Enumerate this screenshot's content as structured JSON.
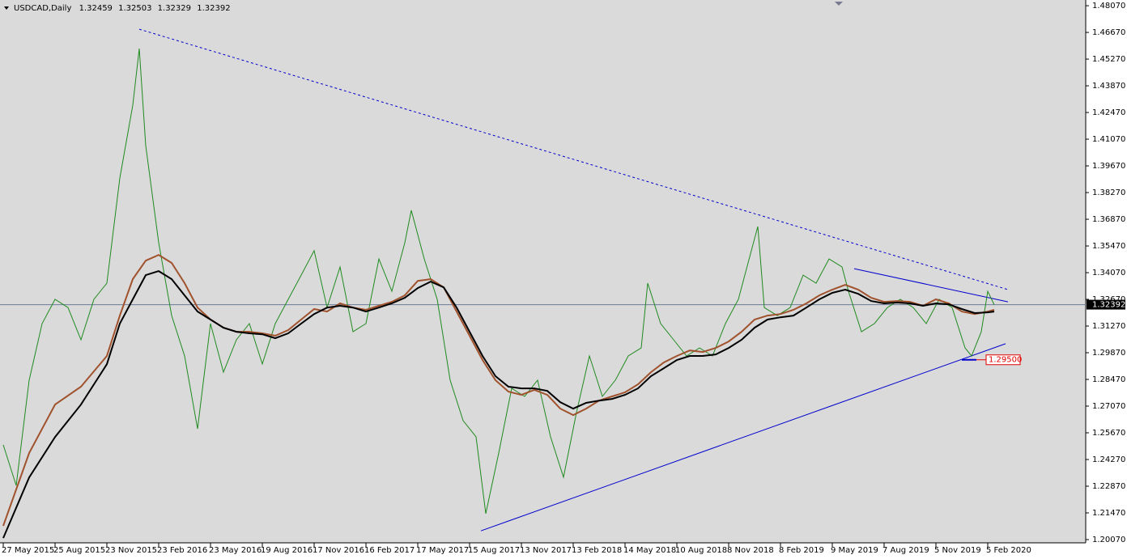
{
  "chart_data": {
    "type": "line",
    "title": "USDCAD,Daily",
    "ohlc": [
      1.32459,
      1.32503,
      1.32329,
      1.32392
    ],
    "current_price": 1.32392,
    "level": {
      "value": 1.295,
      "label": "1.29500"
    },
    "xlim": [
      0,
      1336
    ],
    "ylim": [
      1.199,
      1.4837
    ],
    "xticks": [
      {
        "value": 0,
        "label": "27 May 2015"
      },
      {
        "value": 64,
        "label": "25 Aug 2015"
      },
      {
        "value": 128,
        "label": "23 Nov 2015"
      },
      {
        "value": 192,
        "label": "23 Feb 2016"
      },
      {
        "value": 256,
        "label": "23 May 2016"
      },
      {
        "value": 320,
        "label": "19 Aug 2016"
      },
      {
        "value": 384,
        "label": "17 Nov 2016"
      },
      {
        "value": 448,
        "label": "16 Feb 2017"
      },
      {
        "value": 512,
        "label": "17 May 2017"
      },
      {
        "value": 576,
        "label": "15 Aug 2017"
      },
      {
        "value": 640,
        "label": "13 Nov 2017"
      },
      {
        "value": 704,
        "label": "13 Feb 2018"
      },
      {
        "value": 768,
        "label": "14 May 2018"
      },
      {
        "value": 832,
        "label": "10 Aug 2018"
      },
      {
        "value": 896,
        "label": "8 Nov 2018"
      },
      {
        "value": 960,
        "label": "8 Feb 2019"
      },
      {
        "value": 1024,
        "label": "9 May 2019"
      },
      {
        "value": 1088,
        "label": "7 Aug 2019"
      },
      {
        "value": 1152,
        "label": "5 Nov 2019"
      },
      {
        "value": 1216,
        "label": "5 Feb 2020"
      }
    ],
    "yticks": [
      {
        "value": 1.4807,
        "label": "1.48070"
      },
      {
        "value": 1.4667,
        "label": "1.46670"
      },
      {
        "value": 1.4527,
        "label": "1.45270"
      },
      {
        "value": 1.4387,
        "label": "1.43870"
      },
      {
        "value": 1.4247,
        "label": "1.42470"
      },
      {
        "value": 1.4107,
        "label": "1.41070"
      },
      {
        "value": 1.3967,
        "label": "1.39670"
      },
      {
        "value": 1.3827,
        "label": "1.38270"
      },
      {
        "value": 1.3687,
        "label": "1.36870"
      },
      {
        "value": 1.3547,
        "label": "1.35470"
      },
      {
        "value": 1.3407,
        "label": "1.34070"
      },
      {
        "value": 1.3267,
        "label": "1.32670"
      },
      {
        "value": 1.3127,
        "label": "1.31270"
      },
      {
        "value": 1.2987,
        "label": "1.29870"
      },
      {
        "value": 1.2847,
        "label": "1.28470"
      },
      {
        "value": 1.2707,
        "label": "1.27070"
      },
      {
        "value": 1.2567,
        "label": "1.25670"
      },
      {
        "value": 1.2427,
        "label": "1.24270"
      },
      {
        "value": 1.2287,
        "label": "1.22870"
      },
      {
        "value": 1.2147,
        "label": "1.21470"
      },
      {
        "value": 1.2007,
        "label": "1.20070"
      }
    ],
    "series": [
      {
        "color": "#1f8a1f",
        "width": 1,
        "x": [
          0,
          16,
          32,
          48,
          64,
          80,
          96,
          112,
          128,
          144,
          160,
          168,
          176,
          192,
          208,
          224,
          240,
          256,
          272,
          288,
          304,
          320,
          336,
          352,
          368,
          384,
          400,
          416,
          432,
          448,
          464,
          480,
          496,
          504,
          520,
          536,
          552,
          568,
          584,
          596,
          612,
          628,
          644,
          660,
          676,
          692,
          708,
          724,
          740,
          756,
          772,
          788,
          796,
          812,
          828,
          844,
          860,
          876,
          892,
          908,
          924,
          932,
          940,
          956,
          972,
          988,
          1004,
          1020,
          1036,
          1044,
          1060,
          1076,
          1092,
          1108,
          1124,
          1140,
          1156,
          1172,
          1188,
          1196,
          1208,
          1216,
          1224
        ],
        "values": [
          1.2504,
          1.2291,
          1.2843,
          1.314,
          1.3267,
          1.3224,
          1.3055,
          1.3267,
          1.3352,
          1.3903,
          1.4285,
          1.4582,
          1.4073,
          1.3564,
          1.3182,
          1.297,
          1.2588,
          1.314,
          1.2885,
          1.3055,
          1.314,
          1.2928,
          1.314,
          1.3267,
          1.3394,
          1.3522,
          1.3224,
          1.3437,
          1.3097,
          1.314,
          1.3479,
          1.3309,
          1.3564,
          1.3734,
          1.3479,
          1.3267,
          1.2843,
          1.2631,
          1.2546,
          1.2143,
          1.2461,
          1.28,
          1.2758,
          1.2843,
          1.2546,
          1.2334,
          1.2673,
          1.297,
          1.2758,
          1.2843,
          1.297,
          1.3012,
          1.3352,
          1.314,
          1.3055,
          1.297,
          1.3012,
          1.297,
          1.314,
          1.3267,
          1.3522,
          1.3649,
          1.3224,
          1.3182,
          1.3224,
          1.3394,
          1.3352,
          1.3479,
          1.3437,
          1.3309,
          1.3097,
          1.314,
          1.3224,
          1.3267,
          1.3224,
          1.314,
          1.3267,
          1.3224,
          1.3012,
          1.297,
          1.3097,
          1.3309,
          1.3239
        ]
      },
      {
        "color": "#a0522d",
        "width": 2,
        "x": [
          0,
          32,
          64,
          96,
          128,
          144,
          160,
          176,
          192,
          208,
          224,
          240,
          256,
          272,
          288,
          304,
          320,
          336,
          352,
          368,
          384,
          400,
          416,
          432,
          448,
          464,
          480,
          496,
          512,
          528,
          544,
          560,
          576,
          592,
          608,
          624,
          640,
          656,
          672,
          688,
          704,
          720,
          736,
          752,
          768,
          784,
          800,
          816,
          832,
          848,
          864,
          880,
          896,
          912,
          928,
          944,
          960,
          976,
          992,
          1008,
          1024,
          1040,
          1056,
          1072,
          1088,
          1104,
          1120,
          1136,
          1152,
          1168,
          1184,
          1200,
          1216,
          1224
        ],
        "values": [
          1.2079,
          1.2461,
          1.2715,
          1.2809,
          1.297,
          1.3182,
          1.3373,
          1.347,
          1.35,
          1.3458,
          1.3352,
          1.3224,
          1.3161,
          1.3118,
          1.3097,
          1.3097,
          1.3089,
          1.3076,
          1.3106,
          1.3161,
          1.3216,
          1.3203,
          1.3246,
          1.3224,
          1.3212,
          1.3233,
          1.3254,
          1.3288,
          1.3364,
          1.3373,
          1.333,
          1.3203,
          1.3076,
          1.2949,
          1.2843,
          1.2783,
          1.2766,
          1.2792,
          1.2766,
          1.2694,
          1.266,
          1.2694,
          1.2736,
          1.2758,
          1.2779,
          1.2821,
          1.2885,
          1.2936,
          1.297,
          1.2999,
          1.2991,
          1.3012,
          1.3046,
          1.3097,
          1.3161,
          1.3182,
          1.319,
          1.3212,
          1.3246,
          1.3288,
          1.3318,
          1.3343,
          1.3318,
          1.3275,
          1.3254,
          1.3258,
          1.3254,
          1.3233,
          1.3267,
          1.3246,
          1.3203,
          1.319,
          1.3203,
          1.3212
        ]
      },
      {
        "color": "#000000",
        "width": 2,
        "x": [
          0,
          32,
          64,
          96,
          128,
          144,
          160,
          176,
          192,
          208,
          224,
          240,
          256,
          272,
          288,
          304,
          320,
          336,
          352,
          368,
          384,
          400,
          416,
          432,
          448,
          464,
          480,
          496,
          512,
          528,
          544,
          560,
          576,
          592,
          608,
          624,
          640,
          656,
          672,
          688,
          704,
          720,
          736,
          752,
          768,
          784,
          800,
          816,
          832,
          848,
          864,
          880,
          896,
          912,
          928,
          944,
          960,
          976,
          992,
          1008,
          1024,
          1040,
          1056,
          1072,
          1088,
          1104,
          1120,
          1136,
          1152,
          1168,
          1184,
          1200,
          1216,
          1224
        ],
        "values": [
          1.2015,
          1.2333,
          1.2545,
          1.2715,
          1.2927,
          1.314,
          1.3267,
          1.3394,
          1.3415,
          1.3373,
          1.3288,
          1.3203,
          1.3161,
          1.3118,
          1.3097,
          1.3089,
          1.3084,
          1.3063,
          1.3089,
          1.314,
          1.319,
          1.3224,
          1.3233,
          1.3224,
          1.3203,
          1.3224,
          1.3246,
          1.3275,
          1.3326,
          1.336,
          1.333,
          1.3224,
          1.3097,
          1.297,
          1.2864,
          1.2809,
          1.28,
          1.28,
          1.2787,
          1.2728,
          1.2694,
          1.2724,
          1.2736,
          1.2745,
          1.2766,
          1.28,
          1.2864,
          1.2906,
          1.2949,
          1.297,
          1.297,
          1.2978,
          1.3012,
          1.3055,
          1.3118,
          1.3161,
          1.3173,
          1.3182,
          1.3224,
          1.3267,
          1.3301,
          1.3318,
          1.3296,
          1.3258,
          1.3246,
          1.325,
          1.3246,
          1.3233,
          1.3246,
          1.3241,
          1.3216,
          1.3195,
          1.3199,
          1.3203
        ]
      }
    ],
    "trendlines": [
      {
        "color": "#0000cd",
        "dashed": true,
        "x": [
          168,
          1241
        ],
        "values": [
          1.4684,
          1.3318
        ]
      },
      {
        "color": "#0000cd",
        "dashed": false,
        "x": [
          590,
          1238
        ],
        "values": [
          1.2053,
          1.3034
        ]
      },
      {
        "color": "#0000cd",
        "dashed": false,
        "x": [
          1051,
          1241
        ],
        "values": [
          1.3428,
          1.3254
        ]
      }
    ]
  }
}
